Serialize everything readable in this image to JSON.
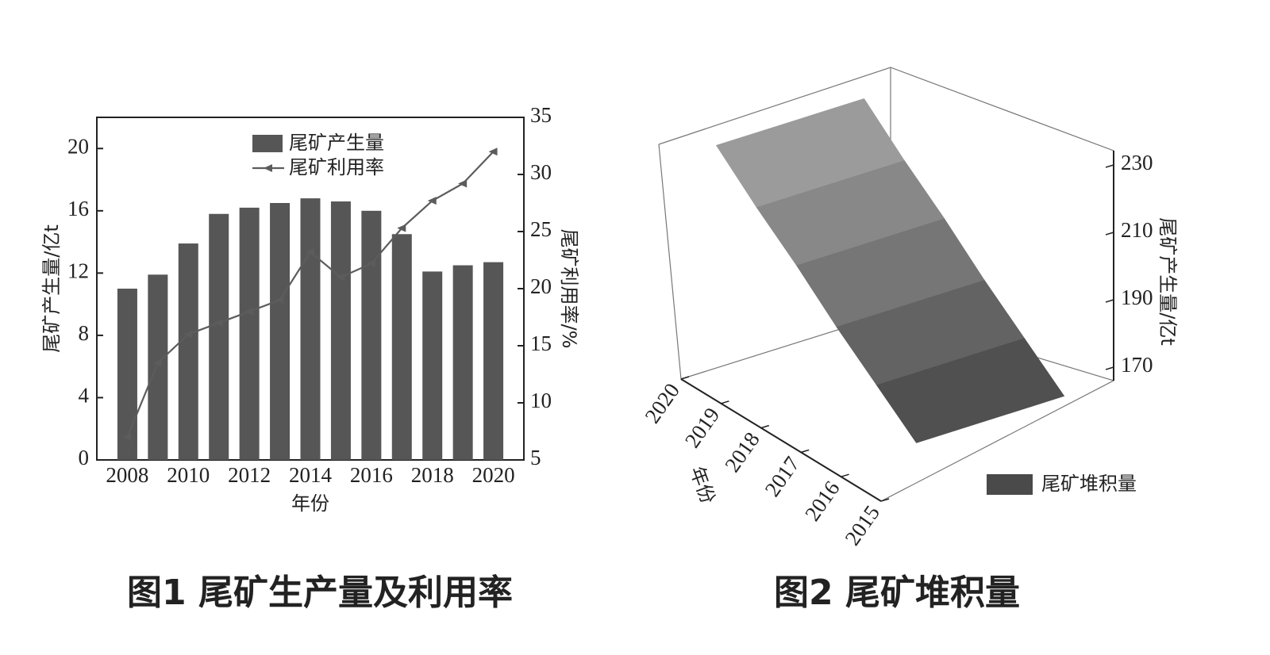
{
  "chart_data": [
    {
      "type": "combo",
      "title": "图1 尾矿生产量及利用率",
      "x": [
        2008,
        2009,
        2010,
        2011,
        2012,
        2013,
        2014,
        2015,
        2016,
        2017,
        2018,
        2019,
        2020
      ],
      "xlim": [
        2007,
        2021
      ],
      "xticks": [
        2008,
        2010,
        2012,
        2014,
        2016,
        2018,
        2020
      ],
      "xlabel": "年份",
      "ylabel": "尾矿产生量/亿t",
      "y2label": "尾矿利用率/%",
      "ylim": [
        0,
        22
      ],
      "yticks": [
        0,
        4,
        8,
        12,
        16,
        20
      ],
      "y2lim": [
        5,
        35
      ],
      "y2ticks": [
        5,
        10,
        15,
        20,
        25,
        30,
        35
      ],
      "series": [
        {
          "name": "尾矿产生量",
          "type": "bar",
          "color": "#565656",
          "values": [
            11.0,
            11.9,
            13.9,
            15.8,
            16.2,
            16.5,
            16.8,
            16.6,
            16.0,
            14.5,
            12.1,
            12.5,
            12.7
          ]
        },
        {
          "name": "尾矿利用率",
          "type": "line",
          "axis": "y2",
          "color": "#5c5c5c",
          "values": [
            7.0,
            13.5,
            16.0,
            17.0,
            18.0,
            19.0,
            23.2,
            21.0,
            22.2,
            25.3,
            27.7,
            29.2,
            32.0
          ]
        }
      ]
    },
    {
      "type": "surface",
      "title": "图2 尾矿堆积量",
      "x": [
        2015,
        2016,
        2017,
        2018,
        2019,
        2020
      ],
      "xlim": [
        2015,
        2020
      ],
      "xticks": [
        2015,
        2016,
        2017,
        2018,
        2019,
        2020
      ],
      "xlabel": "年份",
      "zlabel": "尾矿产生量/亿t",
      "zlim": [
        166,
        236
      ],
      "zticks": [
        170,
        190,
        210,
        230
      ],
      "series": [
        {
          "name": "尾矿堆积量",
          "color": "#4a4a4a",
          "values": [
            180,
            190,
            200,
            211,
            221,
            232
          ]
        }
      ]
    }
  ]
}
